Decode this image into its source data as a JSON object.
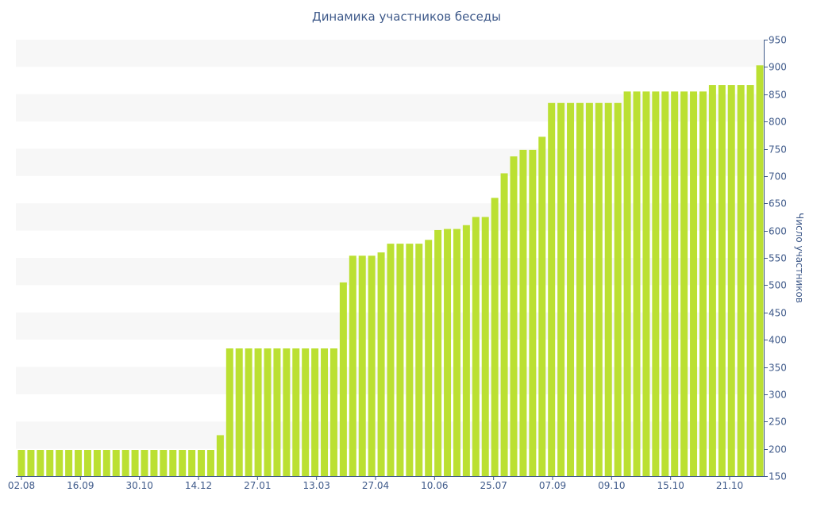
{
  "chart_data": {
    "type": "bar",
    "title": "Динамика участников беседы",
    "xlabel": "",
    "ylabel": "Число участников",
    "ylim": [
      150,
      950
    ],
    "yticks": [
      150,
      200,
      250,
      300,
      350,
      400,
      450,
      500,
      550,
      600,
      650,
      700,
      750,
      800,
      850,
      900,
      950
    ],
    "xtick_labels": [
      "02.08",
      "16.09",
      "30.10",
      "14.12",
      "27.01",
      "13.03",
      "27.04",
      "10.06",
      "25.07",
      "07.09",
      "09.10",
      "15.10",
      "21.10"
    ],
    "grid": "horizontal alternating bands",
    "legend": "none",
    "bar_color": "#bbe032",
    "axis_color": "#3f5a8a",
    "band_color": "#f7f7f7",
    "values": [
      198,
      198,
      198,
      198,
      198,
      198,
      198,
      198,
      198,
      198,
      198,
      198,
      198,
      198,
      198,
      198,
      198,
      198,
      198,
      198,
      198,
      225,
      384,
      384,
      384,
      384,
      384,
      384,
      384,
      384,
      384,
      384,
      384,
      384,
      505,
      554,
      554,
      554,
      560,
      576,
      576,
      576,
      576,
      583,
      601,
      603,
      603,
      610,
      625,
      625,
      660,
      705,
      736,
      748,
      748,
      772,
      834,
      834,
      834,
      834,
      834,
      834,
      834,
      834,
      855,
      855,
      855,
      855,
      855,
      855,
      855,
      855,
      855,
      867,
      867,
      867,
      867,
      867,
      903
    ]
  }
}
